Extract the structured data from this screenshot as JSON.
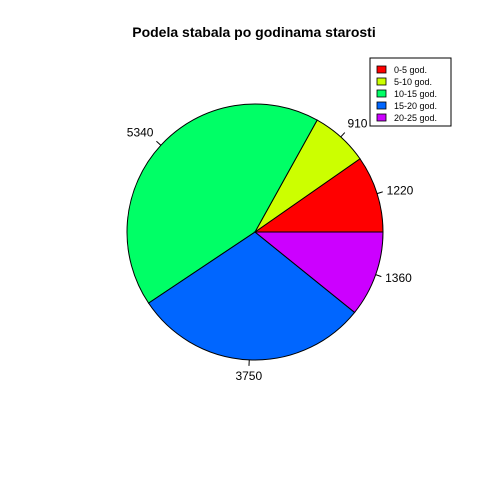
{
  "chart_data": {
    "type": "pie",
    "title": "Podela stabala po godinama starosti",
    "start_angle_deg": 0,
    "direction": "counterclockwise",
    "legend_position": "top-right",
    "slices": [
      {
        "label": "0-5 god.",
        "value": 1220,
        "color": "#FF0000"
      },
      {
        "label": "5-10 god.",
        "value": 910,
        "color": "#CCFF00"
      },
      {
        "label": "10-15 god.",
        "value": 5340,
        "color": "#00FF66"
      },
      {
        "label": "15-20 god.",
        "value": 3750,
        "color": "#0066FF"
      },
      {
        "label": "20-25 god.",
        "value": 1360,
        "color": "#CC00FF"
      }
    ]
  }
}
